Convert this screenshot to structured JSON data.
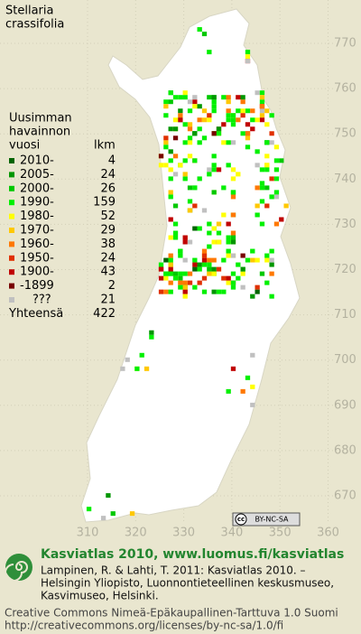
{
  "title_lines": [
    "Stellaria",
    "crassifolia"
  ],
  "legend": {
    "header_lines": [
      "Uusimman",
      "havainnon",
      "vuosi"
    ],
    "count_header": "lkm",
    "rows": [
      {
        "label": "2010-",
        "count": "4",
        "color": "#006400"
      },
      {
        "label": "2005-",
        "count": "24",
        "color": "#009600"
      },
      {
        "label": "2000-",
        "count": "26",
        "color": "#00c800"
      },
      {
        "label": "1990-",
        "count": "159",
        "color": "#00f000"
      },
      {
        "label": "1980-",
        "count": "52",
        "color": "#ffff00"
      },
      {
        "label": "1970-",
        "count": "29",
        "color": "#ffc800"
      },
      {
        "label": "1960-",
        "count": "38",
        "color": "#ff7800"
      },
      {
        "label": "1950-",
        "count": "24",
        "color": "#e03000"
      },
      {
        "label": "1900-",
        "count": "43",
        "color": "#c00000"
      },
      {
        "label": "-1899",
        "count": "2",
        "color": "#780000"
      },
      {
        "label": "???",
        "count": "21",
        "color": "#c0c0c0"
      }
    ],
    "total": {
      "label": "Yhteensä",
      "count": "422"
    }
  },
  "grid": {
    "xticks": [
      310,
      320,
      330,
      340,
      350,
      360
    ],
    "yticks": [
      770,
      760,
      750,
      740,
      730,
      720,
      710,
      700,
      690,
      680,
      670
    ]
  },
  "badge": {
    "cc": "cc",
    "license": "BY-NC-SA"
  },
  "footer": {
    "heading": "Kasviatlas 2010, www.luomus.fi/kasviatlas",
    "citation_lines": [
      "Lampinen, R. & Lahti, T. 2011: Kasviatlas 2010. –",
      "Helsingin Yliopisto, Luonnontieteellinen keskusmuseo,",
      "Kasvimuseo, Helsinki."
    ],
    "license_lines": [
      "Creative Commons Nimeä-Epäkaupallinen-Tarttuva 1.0 Suomi",
      "http://creativecommons.org/licenses/by-nc-sa/1.0/fi"
    ]
  }
}
